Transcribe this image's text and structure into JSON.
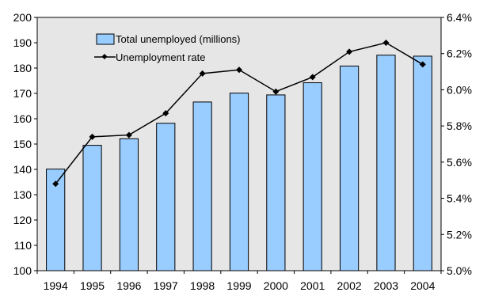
{
  "chart_data": {
    "type": "bar",
    "title": "",
    "xlabel": "",
    "ylabel": "",
    "categories": [
      "1994",
      "1995",
      "1996",
      "1997",
      "1998",
      "1999",
      "2000",
      "2001",
      "2002",
      "2003",
      "2004"
    ],
    "series": [
      {
        "name": "Total unemployed (millions)",
        "type": "bar",
        "axis": "left",
        "color": "#99CCFF",
        "values": [
          140.1,
          149.5,
          152.1,
          158.2,
          166.6,
          170.1,
          169.4,
          174.2,
          180.8,
          185.1,
          184.7
        ]
      },
      {
        "name": "Unemployment rate",
        "type": "line",
        "axis": "right",
        "color": "#000000",
        "values": [
          5.48,
          5.74,
          5.75,
          5.87,
          6.09,
          6.11,
          5.99,
          6.07,
          6.21,
          6.26,
          6.14
        ]
      }
    ],
    "y_left": {
      "ylim": [
        100,
        200
      ],
      "ticks": [
        "100",
        "110",
        "120",
        "130",
        "140",
        "150",
        "160",
        "170",
        "180",
        "190",
        "200"
      ]
    },
    "y_right": {
      "ylim": [
        5.0,
        6.4
      ],
      "ticks": [
        "5.0%",
        "5.2%",
        "5.4%",
        "5.6%",
        "5.8%",
        "6.0%",
        "6.2%",
        "6.4%"
      ]
    },
    "legend_position": "top-left inside plot",
    "grid": false,
    "plot_background": "#E6E6E6",
    "colors": {
      "bar_fill": "#99CCFF",
      "bar_edge": "#000000",
      "line": "#000000"
    }
  }
}
